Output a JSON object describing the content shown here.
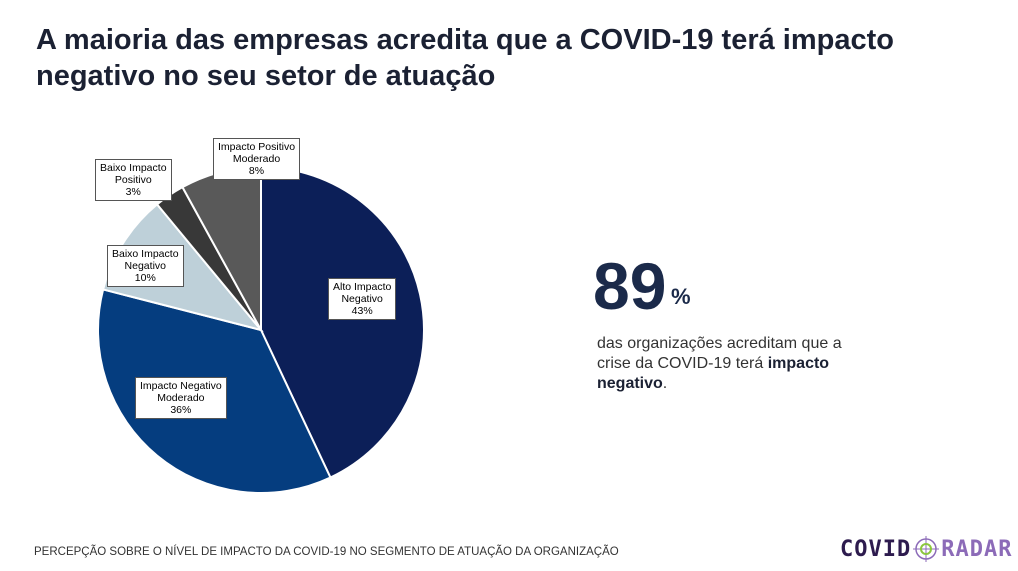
{
  "title": "A maioria das empresas acredita que a COVID-19 terá impacto negativo no seu setor de atuação",
  "chart_data": {
    "type": "pie",
    "title": "Percepção sobre o nível de impacto da COVID-19 no segmento de atuação da organização",
    "slices": [
      {
        "name": "Alto Impacto Negativo",
        "value": 43,
        "label": "43%",
        "color": "#0c1f58"
      },
      {
        "name": "Impacto Negativo Moderado",
        "value": 36,
        "label": "36%",
        "color": "#053d7f"
      },
      {
        "name": "Baixo Impacto Negativo",
        "value": 10,
        "label": "10%",
        "color": "#bed0d9"
      },
      {
        "name": "Baixo Impacto Positivo",
        "value": 3,
        "label": "3%",
        "color": "#383838"
      },
      {
        "name": "Impacto Positivo Moderado",
        "value": 8,
        "label": "8%",
        "color": "#595959"
      }
    ]
  },
  "labels": {
    "alto": [
      "Alto Impacto",
      "Negativo",
      "43%"
    ],
    "moderado": [
      "Impacto Negativo",
      "Moderado",
      "36%"
    ],
    "baixoneg": [
      "Baixo Impacto",
      "Negativo",
      "10%"
    ],
    "baixopos": [
      "Baixo Impacto",
      "Positivo",
      "3%"
    ],
    "positivo": [
      "Impacto Positivo",
      "Moderado",
      "8%"
    ]
  },
  "highlight": {
    "number": "89",
    "unit": "%",
    "text": "das organizações acreditam que a crise da COVID-19 terá ",
    "bold": "impacto negativo",
    "end": "."
  },
  "footer": "PERCEPÇÃO SOBRE O NÍVEL DE IMPACTO DA COVID-19 NO SEGMENTO DE ATUAÇÃO DA ORGANIZAÇÃO",
  "logo": {
    "left": "COVID",
    "right": "RADAR"
  }
}
